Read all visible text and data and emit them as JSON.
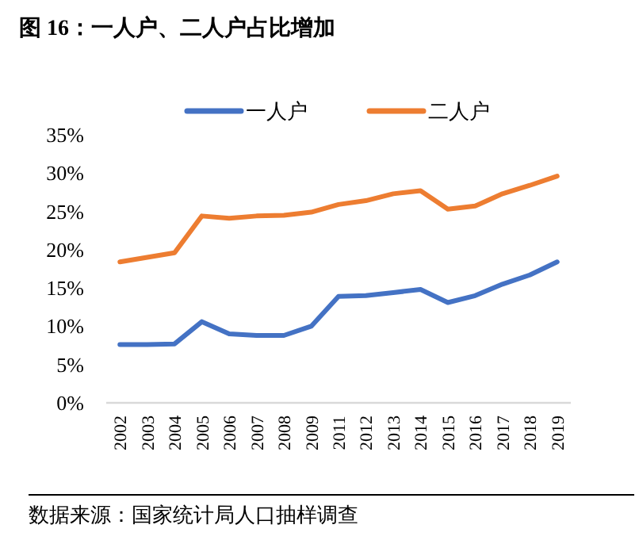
{
  "chart_data": {
    "type": "line",
    "title": "图 16：一人户、二人户占比增加",
    "categories": [
      "2002",
      "2003",
      "2004",
      "2005",
      "2006",
      "2007",
      "2008",
      "2009",
      "2011",
      "2012",
      "2013",
      "2014",
      "2015",
      "2016",
      "2017",
      "2018",
      "2019"
    ],
    "series": [
      {
        "name": "一人户",
        "color": "#4472c4",
        "values": [
          7.6,
          7.6,
          7.7,
          10.6,
          9.0,
          8.8,
          8.8,
          10.0,
          13.9,
          14.0,
          14.4,
          14.8,
          13.1,
          14.0,
          15.5,
          16.7,
          18.4
        ]
      },
      {
        "name": "二人户",
        "color": "#ed7d31",
        "values": [
          18.4,
          19.0,
          19.6,
          24.4,
          24.1,
          24.4,
          24.5,
          24.9,
          25.9,
          26.4,
          27.3,
          27.7,
          25.3,
          25.7,
          27.3,
          28.4,
          29.6
        ]
      }
    ],
    "ylim": [
      0,
      35
    ],
    "yticks": [
      {
        "value": 0,
        "label": "0%"
      },
      {
        "value": 5,
        "label": "5%"
      },
      {
        "value": 10,
        "label": "10%"
      },
      {
        "value": 15,
        "label": "15%"
      },
      {
        "value": 20,
        "label": "20%"
      },
      {
        "value": 25,
        "label": "25%"
      },
      {
        "value": 30,
        "label": "30%"
      },
      {
        "value": 35,
        "label": "35%"
      }
    ],
    "grid": false,
    "legend": "top",
    "marker": "none",
    "line_style": "solid",
    "annotations": [
      "数据来源：国家统计局人口抽样调查"
    ]
  }
}
